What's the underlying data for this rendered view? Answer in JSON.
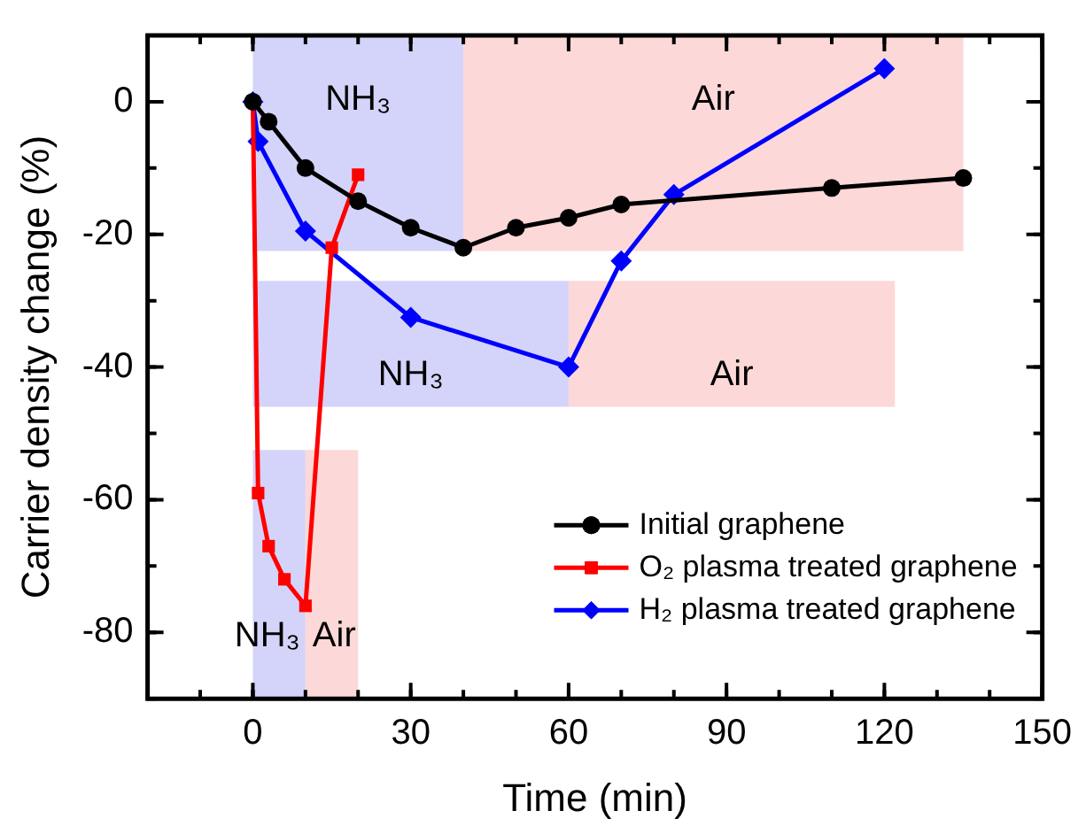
{
  "chart_data": {
    "type": "line",
    "xlabel": "Time (min)",
    "ylabel": "Carrier density change (%)",
    "xlim": [
      -20,
      150
    ],
    "xticks": [
      0,
      30,
      60,
      90,
      120,
      150
    ],
    "ylim": [
      -90,
      10
    ],
    "yticks": [
      -80,
      -60,
      -40,
      -20,
      0
    ],
    "grid": false,
    "legend": "bottom right",
    "line_style": "solid",
    "series": [
      {
        "name": "Initial graphene",
        "color": "#000000",
        "marker": "circle",
        "x": [
          0,
          3,
          10,
          20,
          30,
          40,
          50,
          60,
          70,
          110,
          135
        ],
        "values": [
          0,
          -3,
          -10,
          -15,
          -19,
          -22,
          -19,
          -17.5,
          -15.5,
          -13,
          -11.5
        ]
      },
      {
        "name": "O₂ plasma treated graphene",
        "color": "#ff0000",
        "marker": "square",
        "x": [
          0,
          1,
          3,
          6,
          10,
          15,
          20
        ],
        "values": [
          0,
          -59,
          -67,
          -72,
          -76,
          -22,
          -11
        ]
      },
      {
        "name": "H₂ plasma treated graphene",
        "color": "#0000ff",
        "marker": "diamond",
        "x": [
          0,
          1,
          10,
          30,
          60,
          70,
          80,
          120
        ],
        "values": [
          0,
          -6,
          -19.5,
          -32.5,
          -40,
          -24,
          -14,
          5
        ]
      }
    ],
    "bands": [
      {
        "axis": "x",
        "from": 0,
        "to": 40,
        "label": "NH₃",
        "color": "#d4d4fa"
      },
      {
        "axis": "x",
        "from": 40,
        "to": 135,
        "label": "Air",
        "color": "#fcd8d8"
      },
      {
        "axis": "x",
        "from": 0,
        "to": 60,
        "label": "NH₃",
        "color": "#d4d4fa"
      },
      {
        "axis": "x",
        "from": 60,
        "to": 122,
        "label": "Air",
        "color": "#fcd8d8"
      },
      {
        "axis": "x",
        "from": 0,
        "to": 10,
        "label": "NH₃",
        "color": "#d4d4fa"
      },
      {
        "axis": "x",
        "from": 10,
        "to": 20,
        "label": "Air",
        "color": "#fcd8d8"
      }
    ]
  }
}
